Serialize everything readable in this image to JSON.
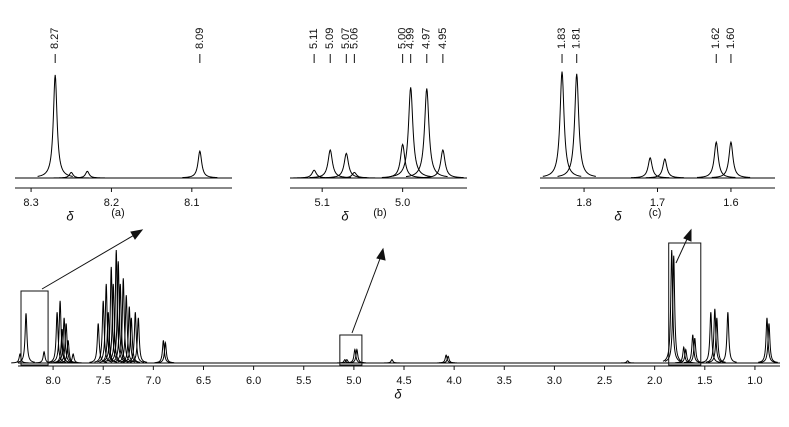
{
  "chart_data": [
    {
      "type": "spectrum",
      "panel_label": "(a)",
      "x_label": "δ",
      "color": "#000000",
      "xlim": [
        8.32,
        8.05
      ],
      "ylim": [
        0,
        100
      ],
      "xticks": [
        8.3,
        8.2,
        8.1
      ],
      "x": [
        8.27,
        8.25,
        8.23,
        8.09
      ],
      "values": [
        92,
        5,
        6,
        24
      ],
      "peak_labels": [
        8.27,
        8.09
      ]
    },
    {
      "type": "spectrum",
      "panel_label": "(b)",
      "x_label": "δ",
      "color": "#000000",
      "xlim": [
        5.14,
        4.92
      ],
      "ylim": [
        0,
        100
      ],
      "xticks": [
        5.1,
        {
          "value": 5.0,
          "label": "5.0"
        }
      ],
      "x": [
        5.11,
        5.09,
        5.07,
        5.06,
        5.0,
        4.99,
        4.97,
        4.95
      ],
      "values": [
        7,
        25,
        22,
        5,
        30,
        81,
        80,
        25
      ],
      "peak_labels": [
        5.11,
        5.09,
        5.07,
        5.06,
        {
          "value": 5.0,
          "label": "5.00"
        },
        4.99,
        4.97,
        4.95
      ]
    },
    {
      "type": "spectrum",
      "panel_label": "(c)",
      "x_label": "δ",
      "color": "#000000",
      "xlim": [
        1.86,
        1.54
      ],
      "ylim": [
        0,
        100
      ],
      "xticks": [
        1.8,
        1.7,
        1.6
      ],
      "x": [
        1.83,
        1.81,
        1.71,
        1.69,
        1.62,
        1.6
      ],
      "values": [
        95,
        93,
        18,
        17,
        32,
        32
      ],
      "peak_labels": [
        1.83,
        1.81,
        1.62,
        {
          "value": 1.6,
          "label": "1.60"
        }
      ]
    },
    {
      "type": "spectrum",
      "x_label": "δ",
      "color": "#000000",
      "xlim": [
        8.35,
        0.75
      ],
      "ylim": [
        0,
        100
      ],
      "xticks": [
        {
          "value": 8.0,
          "label": "8.0"
        },
        7.5,
        {
          "value": 7.0,
          "label": "7.0"
        },
        6.5,
        {
          "value": 6.0,
          "label": "6.0"
        },
        5.5,
        {
          "value": 5.0,
          "label": "5.0"
        },
        4.5,
        {
          "value": 4.0,
          "label": "4.0"
        },
        3.5,
        {
          "value": 3.0,
          "label": "3.0"
        },
        2.5,
        {
          "value": 2.0,
          "label": "2.0"
        },
        1.5,
        {
          "value": 1.0,
          "label": "1.0"
        }
      ],
      "x": [
        8.33,
        8.27,
        8.09,
        7.96,
        7.93,
        7.91,
        7.89,
        7.87,
        7.85,
        7.8,
        7.55,
        7.5,
        7.47,
        7.45,
        7.42,
        7.4,
        7.37,
        7.35,
        7.33,
        7.3,
        7.27,
        7.24,
        7.22,
        7.18,
        7.15,
        6.9,
        6.88,
        5.09,
        5.07,
        4.99,
        4.97,
        4.62,
        4.08,
        4.06,
        2.27,
        1.83,
        1.81,
        1.71,
        1.69,
        1.62,
        1.6,
        1.44,
        1.4,
        1.38,
        1.27,
        0.88,
        0.86
      ],
      "values": [
        8,
        44,
        10,
        45,
        55,
        30,
        40,
        35,
        20,
        8,
        35,
        55,
        70,
        45,
        85,
        70,
        100,
        90,
        70,
        75,
        60,
        50,
        40,
        45,
        40,
        20,
        18,
        3,
        3,
        12,
        12,
        3,
        7,
        6,
        2,
        100,
        95,
        14,
        12,
        25,
        22,
        45,
        48,
        40,
        45,
        40,
        35
      ]
    }
  ]
}
